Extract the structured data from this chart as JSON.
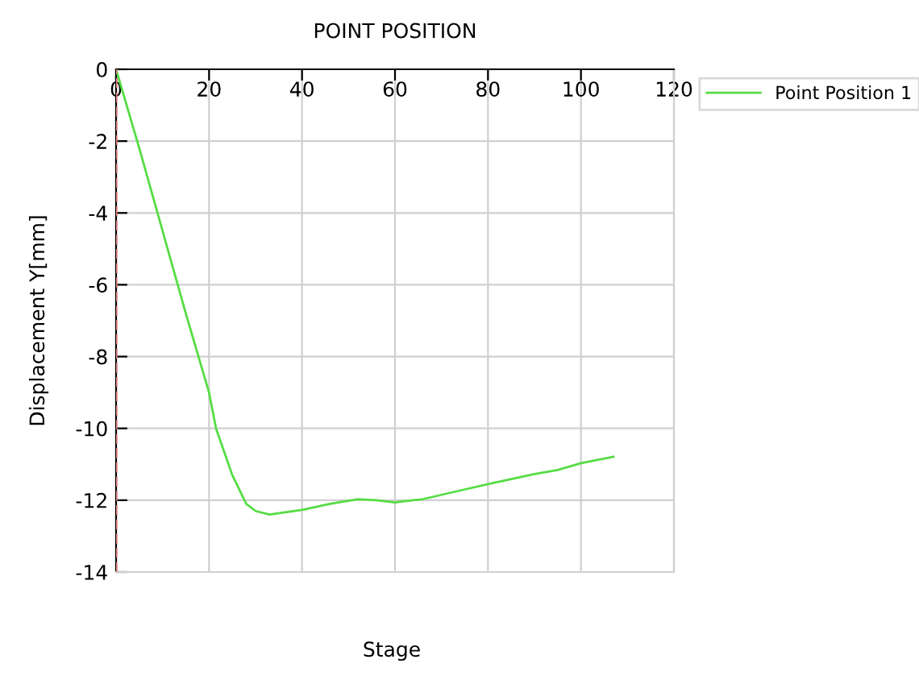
{
  "chart_data": {
    "type": "line",
    "title": "POINT POSITION",
    "xlabel": "Stage",
    "ylabel": "Displacement Y[mm]",
    "series": [
      {
        "name": "Point Position 1",
        "color": "#55dd44",
        "x": [
          0,
          5,
          10,
          15,
          20,
          21.5,
          25,
          28,
          30,
          33,
          40,
          46,
          52,
          56,
          60,
          66,
          75,
          80,
          90,
          95,
          100,
          107
        ],
        "values": [
          0,
          -2.2,
          -4.5,
          -6.8,
          -9.0,
          -10.0,
          -11.3,
          -12.1,
          -12.3,
          -12.4,
          -12.27,
          -12.1,
          -11.97,
          -12.0,
          -12.06,
          -11.97,
          -11.7,
          -11.55,
          -11.27,
          -11.16,
          -10.97,
          -10.79
        ]
      }
    ],
    "xlim": [
      0,
      120
    ],
    "xticks": [
      0,
      20,
      40,
      60,
      80,
      100,
      120
    ],
    "ylim": [
      -14,
      0
    ],
    "yticks": [
      -14,
      -12,
      -10,
      -8,
      -6,
      -4,
      -2,
      0
    ],
    "ref_lines": [
      {
        "axis": "x",
        "value": 0,
        "color": "#e08080",
        "line_style": "dashed"
      }
    ],
    "grid": true,
    "legend": "top right",
    "marker": "none",
    "line_style": "solid"
  }
}
